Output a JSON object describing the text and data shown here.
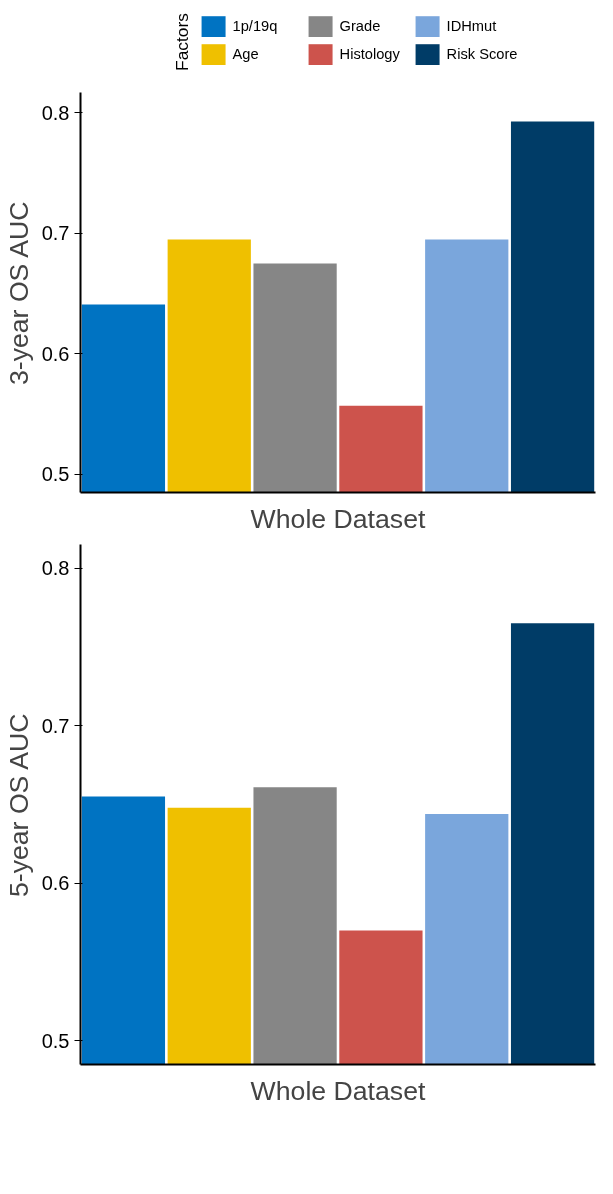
{
  "chart_data": [
    {
      "type": "bar",
      "ylabel": "3-year OS AUC",
      "xlabel": "Whole Dataset",
      "categories": [
        null
      ],
      "ylim": [
        0.485,
        0.817
      ],
      "yticks": [
        0.5,
        0.6,
        0.7,
        0.8
      ],
      "grid": false,
      "legend": "top",
      "legend_title": "Factors",
      "series": [
        {
          "name": "1p/19q",
          "color": "#0073c2",
          "values": [
            0.641
          ]
        },
        {
          "name": "Age",
          "color": "#efc000",
          "values": [
            0.695
          ]
        },
        {
          "name": "Grade",
          "color": "#868686",
          "values": [
            0.675
          ]
        },
        {
          "name": "Histology",
          "color": "#cd534c",
          "values": [
            0.557
          ]
        },
        {
          "name": "IDHmut",
          "color": "#7aa6dc",
          "values": [
            0.695
          ]
        },
        {
          "name": "Risk Score",
          "color": "#003c67",
          "values": [
            0.793
          ]
        }
      ]
    },
    {
      "type": "bar",
      "ylabel": "5-year OS AUC",
      "xlabel": "Whole Dataset",
      "categories": [
        null
      ],
      "ylim": [
        0.485,
        0.815
      ],
      "yticks": [
        0.5,
        0.6,
        0.7,
        0.8
      ],
      "grid": false,
      "series": [
        {
          "color": "#0073c2",
          "values": [
            0.655
          ]
        },
        {
          "color": "#efc000",
          "values": [
            0.648
          ]
        },
        {
          "color": "#868686",
          "values": [
            0.661
          ]
        },
        {
          "color": "#cd534c",
          "values": [
            0.57
          ]
        },
        {
          "color": "#7aa6dc",
          "values": [
            0.644
          ]
        },
        {
          "color": "#003c67",
          "values": [
            0.765
          ]
        }
      ]
    }
  ]
}
